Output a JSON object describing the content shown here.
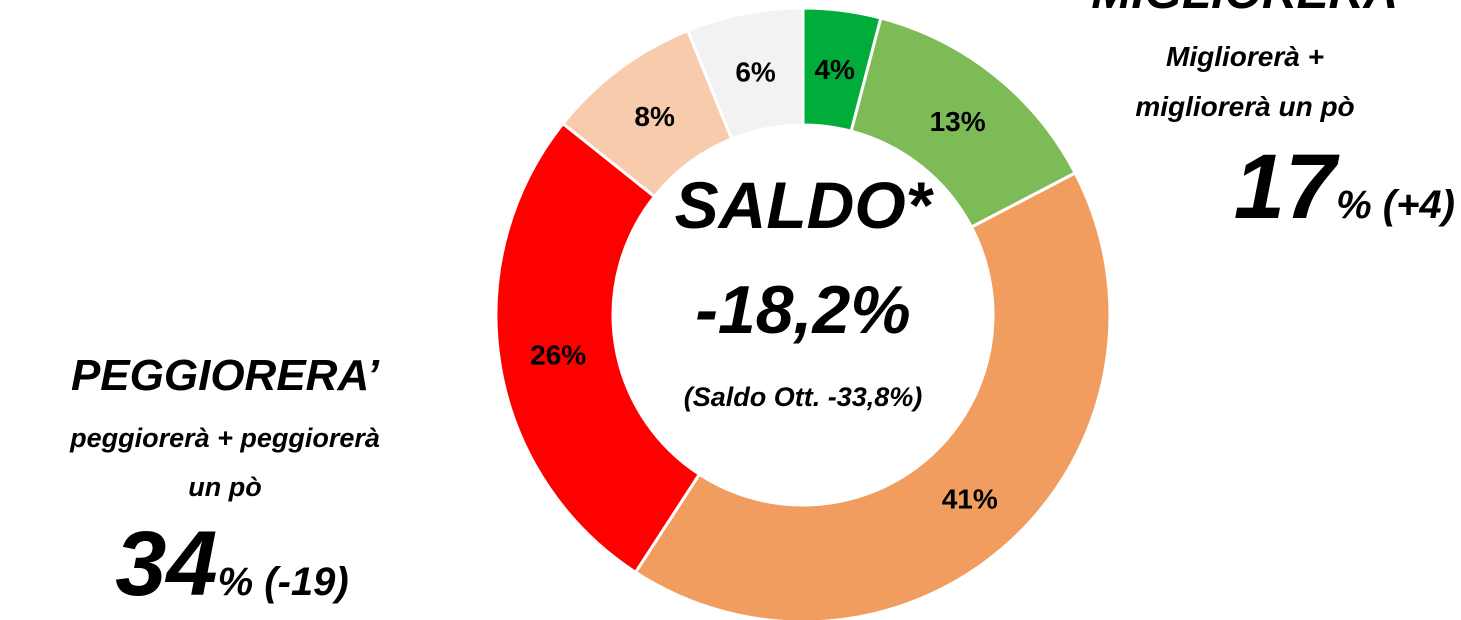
{
  "chart_data": {
    "type": "donut",
    "values": [
      4,
      13,
      41,
      26,
      8,
      6
    ],
    "value_labels": [
      "4%",
      "13%",
      "41%",
      "26%",
      "8%",
      "6%"
    ],
    "colors": [
      "#00ad3a",
      "#7dbb57",
      "#f19d60",
      "#ff0000",
      "#f8cbad",
      "#f2f2f2"
    ],
    "center_text": [
      "SALDO*",
      "-18,2%",
      "(Saldo Ott. -33,8%)"
    ],
    "annotations": [
      {
        "title": "MIGLIORERA’",
        "lines": [
          "Migliorerà +",
          "migliorerà un pò"
        ],
        "value": "17",
        "suffix": "% (+4)"
      },
      {
        "title": "PEGGIORERA’",
        "lines": [
          "peggiorerà + peggiorerà",
          "un pò"
        ],
        "value": "34",
        "suffix": "% (-19)"
      }
    ]
  }
}
